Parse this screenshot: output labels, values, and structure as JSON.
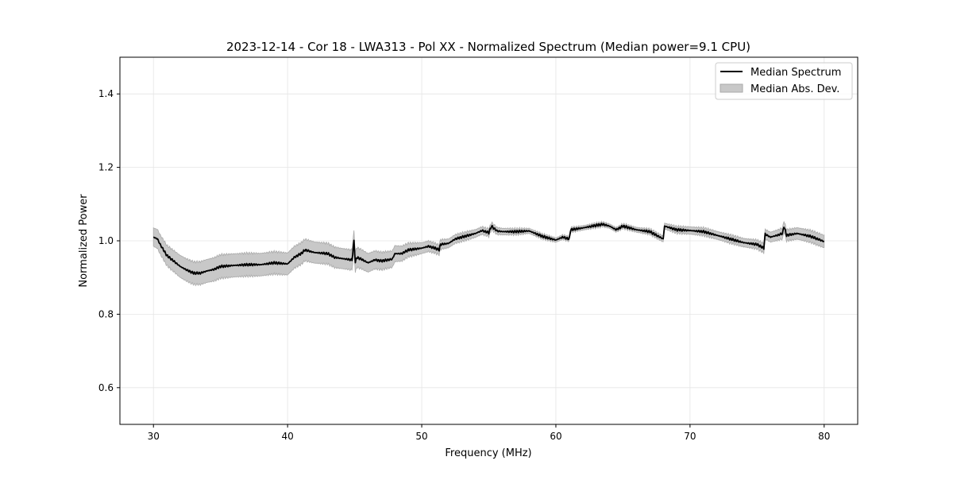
{
  "chart_data": {
    "type": "line",
    "title": "2023-12-14 - Cor 18 - LWA313 - Pol XX - Normalized Spectrum (Median power=9.1 CPU)",
    "xlabel": "Frequency (MHz)",
    "ylabel": "Normalized Power",
    "xlim": [
      27.5,
      82.5
    ],
    "ylim": [
      0.5,
      1.5
    ],
    "xticks": [
      30,
      40,
      50,
      60,
      70,
      80
    ],
    "yticks": [
      0.6,
      0.8,
      1.0,
      1.2,
      1.4
    ],
    "ytick_labels": [
      "0.6",
      "0.8",
      "1.0",
      "1.2",
      "1.4"
    ],
    "grid": true,
    "legend": {
      "placement": "top-right",
      "entries": [
        "Median Spectrum",
        "Median Abs. Dev."
      ]
    },
    "series": [
      {
        "name": "Median Spectrum",
        "color": "#000000",
        "x": [
          30,
          30.3,
          30.5,
          31,
          31.5,
          32,
          32.5,
          33,
          33.5,
          34,
          34.5,
          35,
          36,
          37,
          38,
          39,
          40,
          40.5,
          41,
          41.3,
          42,
          43,
          43.5,
          44,
          44.8,
          44.95,
          45.05,
          45.15,
          45.5,
          46,
          46.5,
          47,
          47.8,
          48,
          48.5,
          49,
          50,
          50.5,
          51,
          51.3,
          51.4,
          52,
          52.5,
          53,
          54,
          54.5,
          55,
          55.2,
          55.6,
          56,
          57,
          58,
          59,
          60,
          60.5,
          61,
          61.1,
          62,
          63,
          63.5,
          64,
          64.5,
          65,
          66,
          67,
          68,
          68.1,
          69,
          70,
          71,
          72,
          73,
          74,
          75,
          75.5,
          75.6,
          76,
          76.5,
          76.9,
          77,
          77.2,
          78,
          79,
          80
        ],
        "y": [
          1.01,
          1.005,
          0.99,
          0.96,
          0.945,
          0.93,
          0.92,
          0.912,
          0.912,
          0.918,
          0.922,
          0.93,
          0.933,
          0.935,
          0.935,
          0.94,
          0.937,
          0.955,
          0.965,
          0.975,
          0.968,
          0.965,
          0.955,
          0.952,
          0.948,
          1.0,
          0.94,
          0.955,
          0.95,
          0.94,
          0.948,
          0.945,
          0.95,
          0.965,
          0.965,
          0.975,
          0.98,
          0.985,
          0.98,
          0.975,
          0.99,
          0.993,
          1.005,
          1.01,
          1.02,
          1.028,
          1.022,
          1.04,
          1.027,
          1.025,
          1.025,
          1.027,
          1.012,
          1.002,
          1.01,
          1.005,
          1.03,
          1.035,
          1.042,
          1.045,
          1.04,
          1.03,
          1.04,
          1.03,
          1.025,
          1.005,
          1.04,
          1.03,
          1.028,
          1.025,
          1.015,
          1.005,
          0.995,
          0.99,
          0.98,
          1.018,
          1.01,
          1.015,
          1.02,
          1.04,
          1.015,
          1.02,
          1.012,
          0.998
        ]
      },
      {
        "name": "Median Abs. Dev.",
        "color": "#c8c8c8",
        "x": [
          30,
          32,
          35,
          40,
          45,
          48,
          50,
          52,
          55,
          58,
          60,
          65,
          68,
          70,
          75,
          77,
          80
        ],
        "mad": [
          0.025,
          0.03,
          0.032,
          0.03,
          0.027,
          0.022,
          0.015,
          0.012,
          0.01,
          0.007,
          0.006,
          0.006,
          0.008,
          0.01,
          0.012,
          0.015,
          0.017
        ]
      }
    ]
  }
}
